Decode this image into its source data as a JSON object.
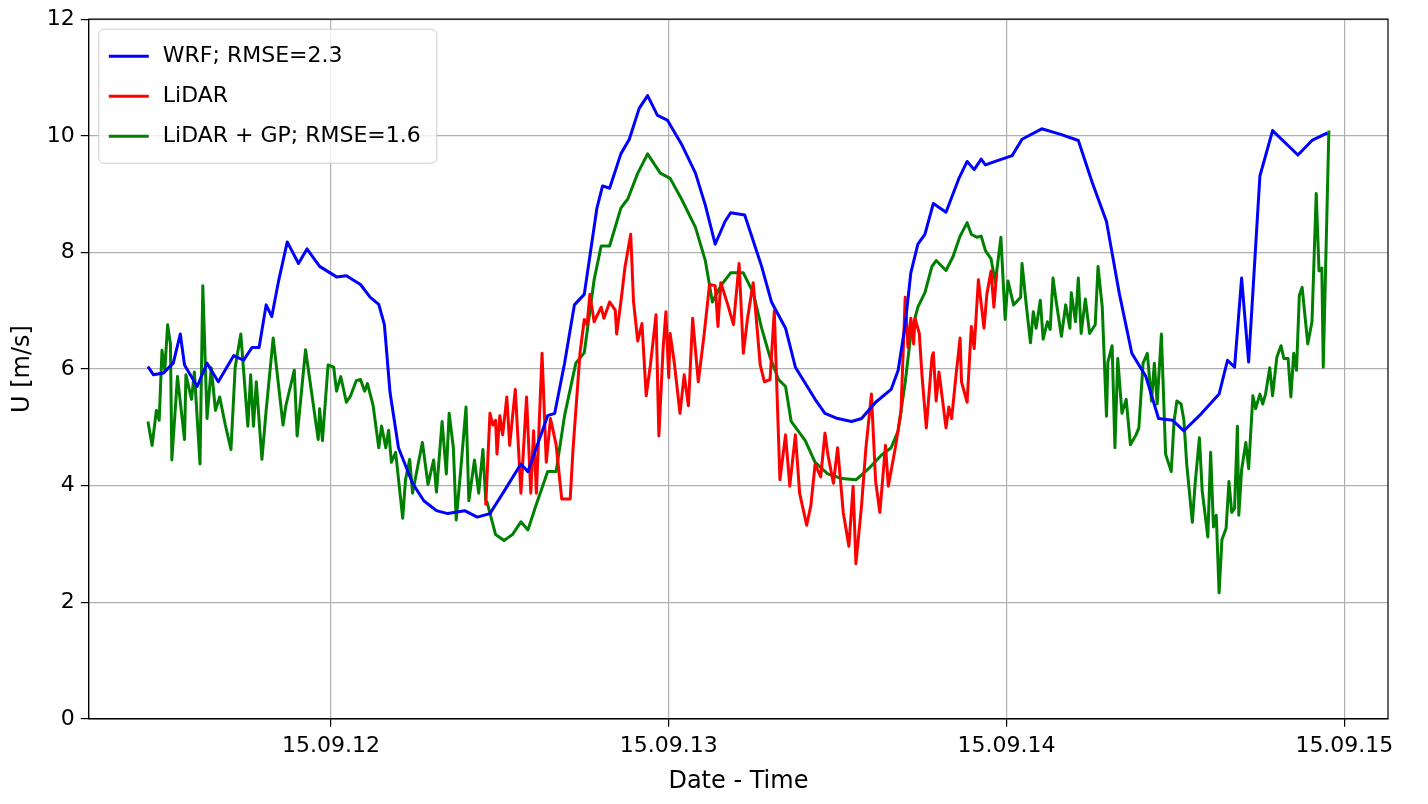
{
  "chart_data": {
    "type": "line",
    "xlabel": "Date - Time",
    "ylabel": "U [m/s]",
    "xlim": [
      "--09-11T06:48",
      "--09-15T03:06"
    ],
    "xticks": [
      {
        "value": "--09-12",
        "label": "15.09.12"
      },
      {
        "value": "--09-13",
        "label": "15.09.13"
      },
      {
        "value": "--09-14",
        "label": "15.09.14"
      },
      {
        "value": "--09-15",
        "label": "15.09.15"
      }
    ],
    "ylim": [
      0,
      12
    ],
    "yticks": [
      0,
      2,
      4,
      6,
      8,
      10,
      12
    ],
    "grid": true,
    "legend": "top left",
    "series": [
      {
        "name": "WRF; RMSE=2.3",
        "color": "#0000ff",
        "x": [
          "--09-11T11:00",
          "--09-11T11:24",
          "--09-11T12:06",
          "--09-11T12:48",
          "--09-11T13:18",
          "--09-11T13:36",
          "--09-11T14:30",
          "--09-11T15:12",
          "--09-11T16:00",
          "--09-11T17:06",
          "--09-11T17:48",
          "--09-11T18:24",
          "--09-11T18:54",
          "--09-11T19:24",
          "--09-11T19:48",
          "--09-11T20:18",
          "--09-11T20:54",
          "--09-11T21:42",
          "--09-11T22:18",
          "--09-11T23:12",
          "--09-12T00:24",
          "--09-12T01:06",
          "--09-12T02:06",
          "--09-12T02:48",
          "--09-12T03:24",
          "--09-12T03:48",
          "--09-12T04:12",
          "--09-12T04:48",
          "--09-12T05:48",
          "--09-12T06:36",
          "--09-12T07:30",
          "--09-12T08:18",
          "--09-12T09:30",
          "--09-12T10:24",
          "--09-12T11:18",
          "--09-12T12:24",
          "--09-12T13:30",
          "--09-12T14:00",
          "--09-12T15:24",
          "--09-12T15:54",
          "--09-12T16:36",
          "--09-12T17:18",
          "--09-12T18:00",
          "--09-12T18:54",
          "--09-12T19:18",
          "--09-12T19:48",
          "--09-12T20:36",
          "--09-12T21:12",
          "--09-12T21:54",
          "--09-12T22:30",
          "--09-12T23:12",
          "--09-12T23:54",
          "--09-13T00:54",
          "--09-13T01:54",
          "--09-13T02:36",
          "--09-13T03:18",
          "--09-13T04:00",
          "--09-13T04:24",
          "--09-13T05:24",
          "--09-13T06:36",
          "--09-13T07:18",
          "--09-13T08:18",
          "--09-13T09:00",
          "--09-13T10:24",
          "--09-13T11:06",
          "--09-13T12:00",
          "--09-13T13:00",
          "--09-13T13:42",
          "--09-13T14:42",
          "--09-13T15:48",
          "--09-13T16:18",
          "--09-13T16:48",
          "--09-13T17:12",
          "--09-13T17:42",
          "--09-13T18:12",
          "--09-13T18:48",
          "--09-13T19:42",
          "--09-13T20:36",
          "--09-13T21:12",
          "--09-13T21:42",
          "--09-13T22:12",
          "--09-13T22:30",
          "--09-13T23:12",
          "--09-14T00:24",
          "--09-14T01:06",
          "--09-14T02:30",
          "--09-14T03:54",
          "--09-14T05:06",
          "--09-14T06:06",
          "--09-14T07:06",
          "--09-14T08:00",
          "--09-14T08:54",
          "--09-14T09:54",
          "--09-14T10:48",
          "--09-14T11:48",
          "--09-14T12:36",
          "--09-14T13:42",
          "--09-14T15:06",
          "--09-14T15:42",
          "--09-14T16:12",
          "--09-14T16:42",
          "--09-14T17:12",
          "--09-14T18:00",
          "--09-14T18:54",
          "--09-14T20:42",
          "--09-14T21:42",
          "--09-14T22:48"
        ],
        "values": [
          6.04,
          5.9,
          5.93,
          6.1,
          6.6,
          6.07,
          5.7,
          6.1,
          5.78,
          6.23,
          6.15,
          6.37,
          6.37,
          7.1,
          6.9,
          7.53,
          8.18,
          7.81,
          8.06,
          7.76,
          7.58,
          7.6,
          7.45,
          7.23,
          7.11,
          6.76,
          5.6,
          4.65,
          4.04,
          3.74,
          3.57,
          3.52,
          3.57,
          3.46,
          3.52,
          3.94,
          4.37,
          4.24,
          5.2,
          5.24,
          6.1,
          7.1,
          7.28,
          8.76,
          9.14,
          9.1,
          9.69,
          9.94,
          10.47,
          10.69,
          10.35,
          10.27,
          9.86,
          9.36,
          8.81,
          8.14,
          8.53,
          8.68,
          8.64,
          7.76,
          7.15,
          6.7,
          6.03,
          5.48,
          5.24,
          5.15,
          5.1,
          5.15,
          5.43,
          5.65,
          5.98,
          6.76,
          7.65,
          8.14,
          8.31,
          8.84,
          8.69,
          9.26,
          9.56,
          9.42,
          9.6,
          9.5,
          9.56,
          9.66,
          9.94,
          10.12,
          10.02,
          9.92,
          9.19,
          8.53,
          7.31,
          6.27,
          5.87,
          5.15,
          5.12,
          4.94,
          5.2,
          5.57,
          6.15,
          6.03,
          7.56,
          6.12,
          9.31,
          10.09,
          9.67,
          9.92,
          10.05
        ]
      },
      {
        "name": "LiDAR",
        "color": "#ff0000",
        "x": [
          "--09-12T11:00",
          "--09-12T11:18",
          "--09-12T11:30",
          "--09-12T11:42",
          "--09-12T11:48",
          "--09-12T12:00",
          "--09-12T12:12",
          "--09-12T12:30",
          "--09-12T12:42",
          "--09-12T13:06",
          "--09-12T13:30",
          "--09-12T13:54",
          "--09-12T14:12",
          "--09-12T14:24",
          "--09-12T14:36",
          "--09-12T15:00",
          "--09-12T15:18",
          "--09-12T15:36",
          "--09-12T16:00",
          "--09-12T16:24",
          "--09-12T17:00",
          "--09-12T17:12",
          "--09-12T17:42",
          "--09-12T18:00",
          "--09-12T18:12",
          "--09-12T18:24",
          "--09-12T18:42",
          "--09-12T19:12",
          "--09-12T19:24",
          "--09-12T19:48",
          "--09-12T20:12",
          "--09-12T20:18",
          "--09-12T20:36",
          "--09-12T20:54",
          "--09-12T21:18",
          "--09-12T21:30",
          "--09-12T21:48",
          "--09-12T22:06",
          "--09-12T22:24",
          "--09-12T22:42",
          "--09-12T23:06",
          "--09-12T23:18",
          "--09-12T23:36",
          "--09-12T23:48",
          "--09-13T00:00",
          "--09-13T00:06",
          "--09-13T00:24",
          "--09-13T00:48",
          "--09-13T01:06",
          "--09-13T01:24",
          "--09-13T01:42",
          "--09-13T02:06",
          "--09-13T02:30",
          "--09-13T02:54",
          "--09-13T03:18",
          "--09-13T03:30",
          "--09-13T03:42",
          "--09-13T04:12",
          "--09-13T04:36",
          "--09-13T05:00",
          "--09-13T05:18",
          "--09-13T05:36",
          "--09-13T06:00",
          "--09-13T06:30",
          "--09-13T06:48",
          "--09-13T07:12",
          "--09-13T07:30",
          "--09-13T07:54",
          "--09-13T08:18",
          "--09-13T08:36",
          "--09-13T09:00",
          "--09-13T09:18",
          "--09-13T09:48",
          "--09-13T10:06",
          "--09-13T10:24",
          "--09-13T10:48",
          "--09-13T11:06",
          "--09-13T11:18",
          "--09-13T11:42",
          "--09-13T12:00",
          "--09-13T12:24",
          "--09-13T12:48",
          "--09-13T13:06",
          "--09-13T13:18",
          "--09-13T13:42",
          "--09-13T14:00",
          "--09-13T14:24",
          "--09-13T14:42",
          "--09-13T15:00",
          "--09-13T15:24",
          "--09-13T15:36",
          "--09-13T16:06",
          "--09-13T16:30",
          "--09-13T16:48",
          "--09-13T17:00",
          "--09-13T17:12",
          "--09-13T17:24",
          "--09-13T17:30",
          "--09-13T17:48",
          "--09-13T18:00",
          "--09-13T18:18",
          "--09-13T18:42",
          "--09-13T18:48",
          "--09-13T19:00",
          "--09-13T19:12",
          "--09-13T19:42",
          "--09-13T19:54",
          "--09-13T20:06",
          "--09-13T20:24",
          "--09-13T20:42",
          "--09-13T20:48",
          "--09-13T21:12",
          "--09-13T21:30",
          "--09-13T21:42",
          "--09-13T22:00",
          "--09-13T22:24",
          "--09-13T22:36",
          "--09-13T22:54",
          "--09-13T23:06",
          "--09-13T23:18"
        ],
        "values": [
          3.66,
          5.24,
          5.04,
          5.12,
          4.54,
          5.2,
          4.87,
          5.52,
          4.69,
          5.65,
          3.87,
          5.52,
          3.87,
          4.94,
          3.87,
          6.27,
          4.4,
          5.15,
          4.7,
          3.77,
          3.77,
          4.62,
          6.28,
          6.85,
          6.76,
          7.28,
          6.81,
          7.06,
          6.87,
          7.15,
          7.01,
          6.6,
          7.15,
          7.76,
          8.31,
          7.15,
          6.48,
          6.78,
          5.54,
          6.07,
          6.93,
          4.85,
          6.35,
          6.98,
          5.85,
          6.61,
          6.1,
          5.24,
          5.9,
          5.37,
          6.87,
          5.78,
          6.56,
          7.45,
          7.43,
          6.73,
          7.48,
          7.1,
          6.76,
          7.81,
          6.27,
          6.87,
          7.48,
          6.07,
          5.78,
          5.82,
          7.0,
          4.1,
          4.87,
          3.99,
          4.87,
          3.87,
          3.32,
          3.66,
          4.37,
          4.15,
          4.9,
          4.54,
          4.04,
          4.65,
          3.54,
          2.96,
          3.99,
          2.66,
          3.66,
          4.62,
          5.57,
          4.07,
          3.54,
          4.69,
          3.99,
          4.65,
          5.27,
          7.23,
          6.37,
          6.87,
          6.43,
          6.87,
          6.61,
          5.87,
          4.99,
          6.2,
          6.28,
          5.45,
          5.95,
          4.99,
          5.35,
          5.15,
          5.87,
          6.53,
          5.78,
          5.43,
          6.73,
          6.35,
          7.53,
          6.7,
          7.28,
          7.68,
          7.06,
          7.65
        ]
      },
      {
        "name": "LiDAR + GP; RMSE=1.6",
        "color": "#008000",
        "x": [
          "--09-11T11:00",
          "--09-11T11:18",
          "--09-11T11:36",
          "--09-11T11:48",
          "--09-11T12:00",
          "--09-11T12:12",
          "--09-11T12:24",
          "--09-11T12:36",
          "--09-11T12:42",
          "--09-11T13:06",
          "--09-11T13:36",
          "--09-11T13:42",
          "--09-11T14:06",
          "--09-11T14:18",
          "--09-11T14:42",
          "--09-11T14:54",
          "--09-11T15:12",
          "--09-11T15:30",
          "--09-11T15:48",
          "--09-11T16:06",
          "--09-11T16:30",
          "--09-11T16:54",
          "--09-11T17:12",
          "--09-11T17:36",
          "--09-11T18:06",
          "--09-11T18:18",
          "--09-11T18:30",
          "--09-11T18:42",
          "--09-11T19:06",
          "--09-11T19:24",
          "--09-11T19:54",
          "--09-11T20:36",
          "--09-11T20:48",
          "--09-11T21:24",
          "--09-11T21:36",
          "--09-11T22:12",
          "--09-11T23:06",
          "--09-11T23:12",
          "--09-11T23:24",
          "--09-11T23:48",
          "--09-12T00:12",
          "--09-12T00:24",
          "--09-12T00:42",
          "--09-12T01:06",
          "--09-12T01:24",
          "--09-12T01:48",
          "--09-12T02:06",
          "--09-12T02:24",
          "--09-12T02:36",
          "--09-12T03:00",
          "--09-12T03:24",
          "--09-12T03:36",
          "--09-12T03:54",
          "--09-12T04:06",
          "--09-12T04:18",
          "--09-12T04:36",
          "--09-12T05:06",
          "--09-12T05:18",
          "--09-12T05:36",
          "--09-12T05:48",
          "--09-12T06:12",
          "--09-12T06:30",
          "--09-12T06:54",
          "--09-12T07:18",
          "--09-12T07:30",
          "--09-12T07:54",
          "--09-12T08:12",
          "--09-12T08:24",
          "--09-12T08:42",
          "--09-12T08:54",
          "--09-12T09:12",
          "--09-12T09:36",
          "--09-12T09:48",
          "--09-12T10:12",
          "--09-12T10:30",
          "--09-12T10:48",
          "--09-12T11:00",
          "--09-12T11:06",
          "--09-12T11:42",
          "--09-12T12:18",
          "--09-12T12:54",
          "--09-12T13:30",
          "--09-12T14:00",
          "--09-12T14:30",
          "--09-12T15:24",
          "--09-12T16:00",
          "--09-12T16:36",
          "--09-12T17:24",
          "--09-12T18:00",
          "--09-12T18:42",
          "--09-12T19:12",
          "--09-12T19:48",
          "--09-12T20:36",
          "--09-12T21:06",
          "--09-12T21:48",
          "--09-12T22:30",
          "--09-12T23:24",
          "--09-13T00:06",
          "--09-13T00:54",
          "--09-13T01:54",
          "--09-13T02:36",
          "--09-13T03:06",
          "--09-13T03:42",
          "--09-13T04:24",
          "--09-13T05:18",
          "--09-13T06:00",
          "--09-13T06:36",
          "--09-13T07:12",
          "--09-13T07:48",
          "--09-13T08:18",
          "--09-13T08:42",
          "--09-13T09:42",
          "--09-13T10:24",
          "--09-13T11:18",
          "--09-13T12:18",
          "--09-13T13:18",
          "--09-13T14:12",
          "--09-13T15:06",
          "--09-13T15:48",
          "--09-13T16:18",
          "--09-13T16:48",
          "--09-13T17:12",
          "--09-13T17:42",
          "--09-13T18:12",
          "--09-13T18:42",
          "--09-13T19:00",
          "--09-13T19:42",
          "--09-13T20:12",
          "--09-13T20:42",
          "--09-13T21:12",
          "--09-13T21:30",
          "--09-13T21:54",
          "--09-13T22:12",
          "--09-13T22:30",
          "--09-13T22:54",
          "--09-13T23:12",
          "--09-13T23:36",
          "--09-13T23:54",
          "--09-14T00:06",
          "--09-14T00:30",
          "--09-14T01:00",
          "--09-14T01:06",
          "--09-14T01:24",
          "--09-14T01:42",
          "--09-14T01:54",
          "--09-14T02:06",
          "--09-14T02:24",
          "--09-14T02:36",
          "--09-14T02:54",
          "--09-14T03:06",
          "--09-14T03:18",
          "--09-14T03:30",
          "--09-14T03:54",
          "--09-14T04:12",
          "--09-14T04:30",
          "--09-14T04:36",
          "--09-14T04:54",
          "--09-14T05:06",
          "--09-14T05:18",
          "--09-14T05:36",
          "--09-14T05:54",
          "--09-14T06:18",
          "--09-14T06:30",
          "--09-14T06:48",
          "--09-14T07:06",
          "--09-14T07:12",
          "--09-14T07:30",
          "--09-14T07:42",
          "--09-14T07:54",
          "--09-14T08:12",
          "--09-14T08:30",
          "--09-14T08:48",
          "--09-14T09:12",
          "--09-14T09:24",
          "--09-14T09:42",
          "--09-14T10:00",
          "--09-14T10:18",
          "--09-14T10:30",
          "--09-14T10:42",
          "--09-14T11:00",
          "--09-14T11:18",
          "--09-14T11:42",
          "--09-14T11:54",
          "--09-14T12:06",
          "--09-14T12:24",
          "--09-14T12:36",
          "--09-14T12:48",
          "--09-14T13:12",
          "--09-14T13:24",
          "--09-14T13:42",
          "--09-14T13:54",
          "--09-14T14:18",
          "--09-14T14:30",
          "--09-14T14:42",
          "--09-14T14:54",
          "--09-14T15:06",
          "--09-14T15:18",
          "--09-14T15:36",
          "--09-14T15:48",
          "--09-14T16:00",
          "--09-14T16:12",
          "--09-14T16:24",
          "--09-14T16:30",
          "--09-14T16:42",
          "--09-14T17:00",
          "--09-14T17:12",
          "--09-14T17:30",
          "--09-14T17:42",
          "--09-14T18:00",
          "--09-14T18:12",
          "--09-14T18:24",
          "--09-14T18:42",
          "--09-14T18:54",
          "--09-14T19:12",
          "--09-14T19:30",
          "--09-14T19:42",
          "--09-14T20:00",
          "--09-14T20:12",
          "--09-14T20:24",
          "--09-14T20:36",
          "--09-14T20:48",
          "--09-14T21:00",
          "--09-14T21:24",
          "--09-14T21:42",
          "--09-14T22:00",
          "--09-14T22:12",
          "--09-14T22:24",
          "--09-14T22:30",
          "--09-14T22:54"
        ],
        "values": [
          5.1,
          4.69,
          5.29,
          5.12,
          6.32,
          5.98,
          6.76,
          6.43,
          4.44,
          5.87,
          4.79,
          5.9,
          5.48,
          5.95,
          4.37,
          7.43,
          5.15,
          6.02,
          5.29,
          5.52,
          5.04,
          4.62,
          6.03,
          6.6,
          5.02,
          5.9,
          5.02,
          5.78,
          4.45,
          5.29,
          6.53,
          5.04,
          5.37,
          5.98,
          4.85,
          6.33,
          4.79,
          5.32,
          4.77,
          6.07,
          6.03,
          5.62,
          5.87,
          5.43,
          5.54,
          5.8,
          5.82,
          5.62,
          5.75,
          5.37,
          4.65,
          5.02,
          4.65,
          4.95,
          4.4,
          4.57,
          3.44,
          4.1,
          4.45,
          3.87,
          4.37,
          4.74,
          4.02,
          4.44,
          3.89,
          5.1,
          4.2,
          5.24,
          4.65,
          3.41,
          4.2,
          5.35,
          3.74,
          4.44,
          3.87,
          4.62,
          3.74,
          3.71,
          3.16,
          3.06,
          3.16,
          3.38,
          3.24,
          3.61,
          4.24,
          4.24,
          5.2,
          6.1,
          6.28,
          7.53,
          8.11,
          8.11,
          8.76,
          8.92,
          9.36,
          9.69,
          9.36,
          9.27,
          8.92,
          8.43,
          7.86,
          7.15,
          7.43,
          7.65,
          7.65,
          7.31,
          6.7,
          6.2,
          5.82,
          5.7,
          5.1,
          4.77,
          4.4,
          4.2,
          4.12,
          4.1,
          4.29,
          4.52,
          4.65,
          4.94,
          5.77,
          6.6,
          7.06,
          7.31,
          7.76,
          7.86,
          7.69,
          7.93,
          8.28,
          8.51,
          8.31,
          8.26,
          8.28,
          8.03,
          7.89,
          7.48,
          8.26,
          6.85,
          7.51,
          7.1,
          7.23,
          7.81,
          7.1,
          6.45,
          6.98,
          6.7,
          7.18,
          6.51,
          6.81,
          6.68,
          7.56,
          7.2,
          6.56,
          7.1,
          6.7,
          7.31,
          6.81,
          7.56,
          6.61,
          7.2,
          6.61,
          6.76,
          7.76,
          7.06,
          5.19,
          6.12,
          6.4,
          4.65,
          6.18,
          5.24,
          5.48,
          4.7,
          4.87,
          4.99,
          6.1,
          6.27,
          5.45,
          6.1,
          5.4,
          6.6,
          4.54,
          4.24,
          5.1,
          5.45,
          5.4,
          5.12,
          4.37,
          3.37,
          4.04,
          4.82,
          3.91,
          3.12,
          4.57,
          3.29,
          3.49,
          2.16,
          3.07,
          3.27,
          4.07,
          3.54,
          3.61,
          5.02,
          3.49,
          4.27,
          4.74,
          4.29,
          5.54,
          5.32,
          5.57,
          5.4,
          5.57,
          6.02,
          5.54,
          6.2,
          6.4,
          6.18,
          6.18,
          5.52,
          6.27,
          5.98,
          7.26,
          7.4,
          6.43,
          6.81,
          9.01,
          7.68,
          7.73,
          6.03,
          10.09
        ]
      }
    ]
  }
}
